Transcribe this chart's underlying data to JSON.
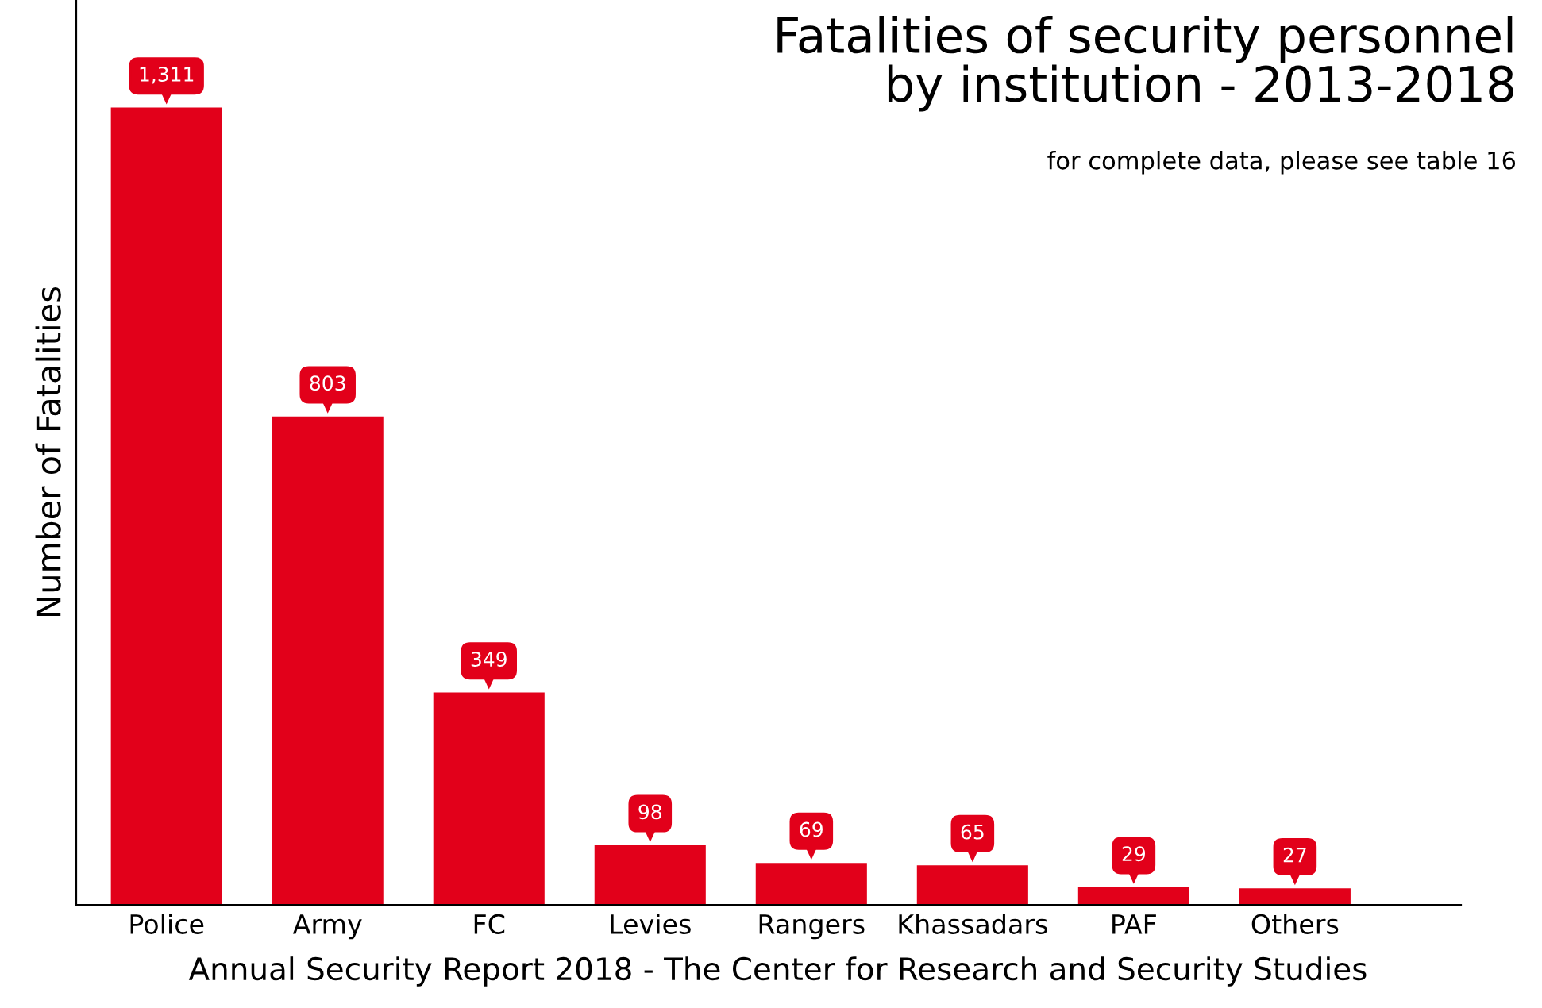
{
  "chart_data": {
    "type": "bar",
    "title": "Fatalities of security personnel\nby institution - 2013-2018",
    "subtitle": "for complete data, please see table 16",
    "ylabel": "Number of Fatalities",
    "categories": [
      "Police",
      "Army",
      "FC",
      "Levies",
      "Rangers",
      "Khassadars",
      "PAF",
      "Others"
    ],
    "values": [
      1311,
      803,
      349,
      98,
      69,
      65,
      29,
      27
    ],
    "color": "#e2001a",
    "value_labels": [
      "1,311",
      "803",
      "349",
      "98",
      "69",
      "65",
      "29",
      "27"
    ],
    "grid": false,
    "legend": false,
    "tick_labels": "x",
    "annotations": [
      "Annual Security Report 2018 - The Center for Research and Security Studies"
    ]
  }
}
